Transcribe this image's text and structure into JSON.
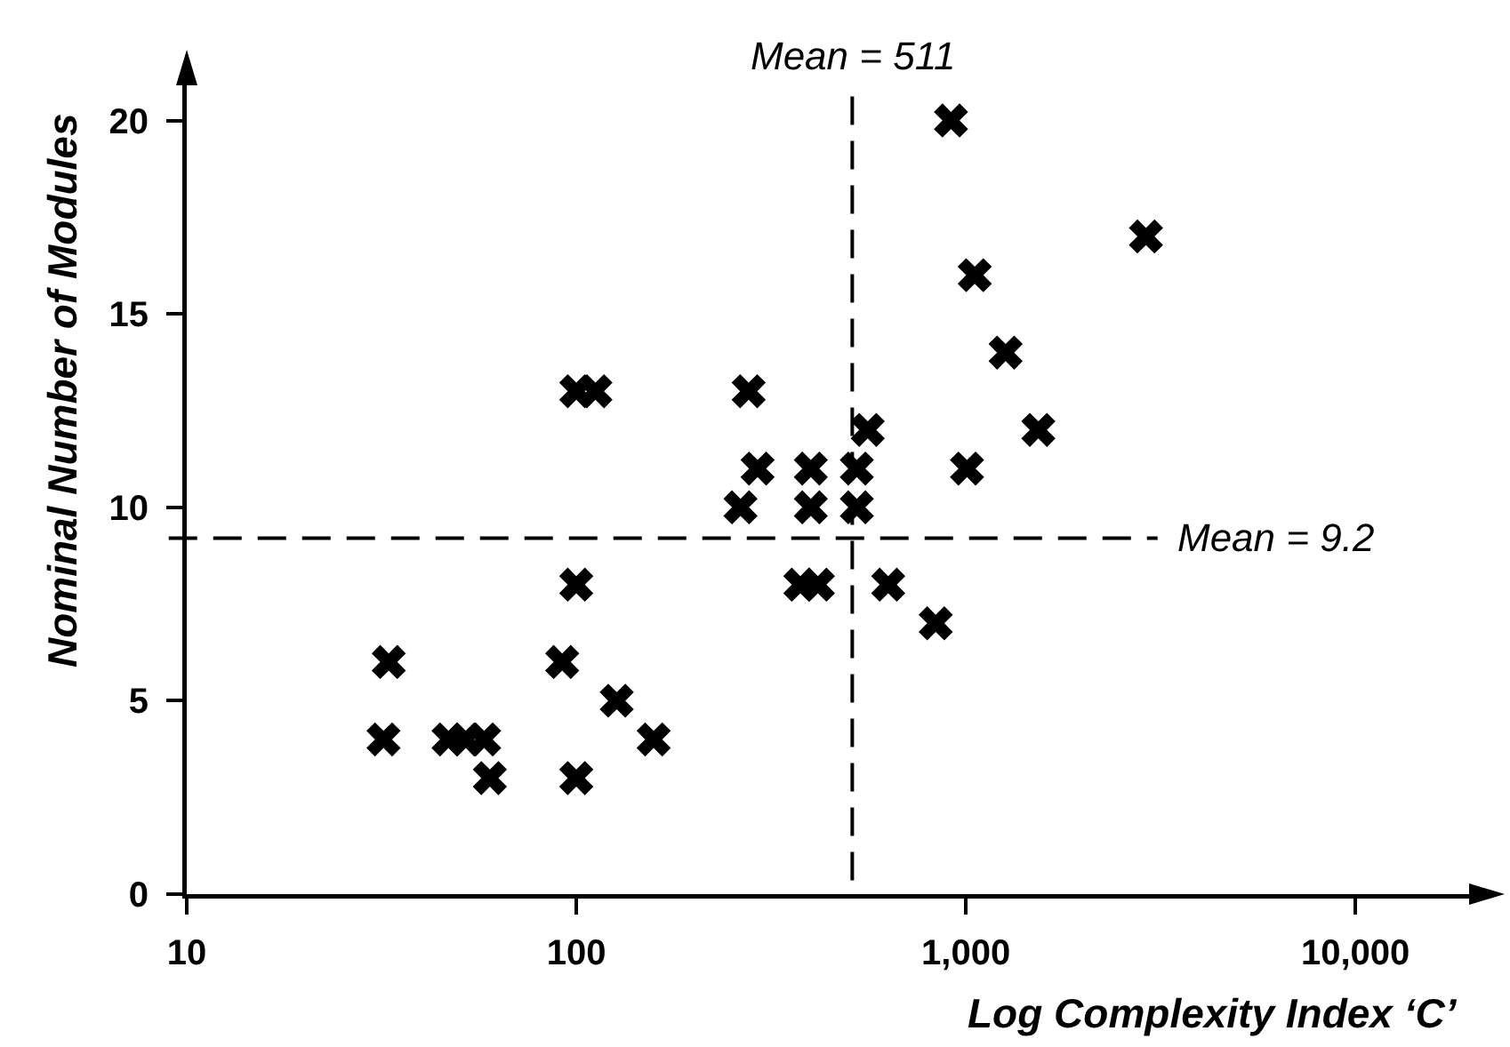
{
  "chart_data": {
    "type": "scatter",
    "xlabel": "Log Complexity Index ‘C’",
    "ylabel": "Nominal Number of Modules",
    "x": [
      32,
      33,
      47,
      52,
      58,
      60,
      92,
      100,
      100,
      127,
      158,
      100,
      112,
      264,
      277,
      292,
      376,
      400,
      400,
      417,
      525,
      525,
      560,
      632,
      837,
      916,
      1007,
      1054,
      1265,
      1535,
      2900
    ],
    "values": [
      4,
      6,
      4,
      4,
      4,
      3,
      6,
      8,
      3,
      5,
      4,
      13,
      13,
      10,
      13,
      11,
      8,
      11,
      10,
      8,
      11,
      10,
      12,
      8,
      7,
      20,
      11,
      16,
      14,
      12,
      17
    ],
    "color": "#000000",
    "marker": "cross",
    "log": "x",
    "xlim": [
      10,
      20000
    ],
    "ylim": [
      0,
      21
    ],
    "xticks": [
      10,
      100,
      {
        "value": 1000,
        "label": "1,000"
      },
      {
        "value": 10000,
        "label": "10,000"
      }
    ],
    "yticks": [
      0,
      5,
      10,
      15,
      20
    ],
    "ref_lines": [
      {
        "axis": "x",
        "value": 511,
        "label": "Mean = 511",
        "line_style": "dashed",
        "color": "#000000"
      },
      {
        "axis": "y",
        "value": 9.2,
        "label": "Mean = 9.2",
        "line_style": "dashed",
        "color": "#000000"
      }
    ]
  }
}
